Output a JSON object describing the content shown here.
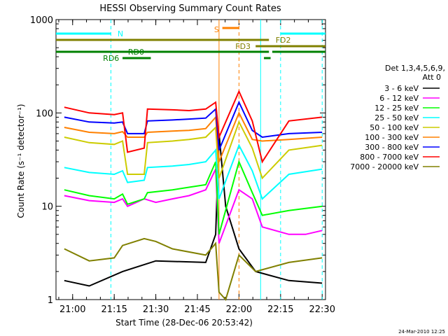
{
  "chart_data": {
    "type": "line",
    "title": "HESSI Observing Summary Count Rates",
    "xlabel": "Start Time (28-Dec-06 20:53:42)",
    "ylabel": "Count Rate (s⁻¹ detector⁻¹)",
    "x_range_minutes": [
      20.9,
      22.52
    ],
    "x_ticks": [
      "21:00",
      "21:15",
      "21:30",
      "21:45",
      "22:00",
      "22:15",
      "22:30"
    ],
    "y_scale": "log",
    "ylim": [
      1,
      1000
    ],
    "y_ticks": [
      "1",
      "10",
      "100",
      "1000"
    ],
    "legend_position": "right",
    "legend_header": [
      "Det 1,3,4,5,6,9,",
      "Att 0"
    ],
    "footer_date": "24-Mar-2010 12:25",
    "series": [
      {
        "name": "3 - 6 keV",
        "color": "#000000",
        "points": [
          [
            20.95,
            1.6
          ],
          [
            21.1,
            1.4
          ],
          [
            21.3,
            2.0
          ],
          [
            21.5,
            2.6
          ],
          [
            21.8,
            2.5
          ],
          [
            21.86,
            5.0
          ],
          [
            21.88,
            60
          ],
          [
            21.92,
            10
          ],
          [
            22.0,
            3.5
          ],
          [
            22.1,
            2.0
          ],
          [
            22.3,
            1.6
          ],
          [
            22.5,
            1.5
          ]
        ]
      },
      {
        "name": "6 - 12 keV",
        "color": "#ff00ff",
        "points": [
          [
            20.95,
            13
          ],
          [
            21.1,
            11.5
          ],
          [
            21.25,
            11
          ],
          [
            21.3,
            12
          ],
          [
            21.33,
            10
          ],
          [
            21.43,
            12
          ],
          [
            21.5,
            11
          ],
          [
            21.6,
            12
          ],
          [
            21.7,
            13
          ],
          [
            21.8,
            15
          ],
          [
            21.86,
            25
          ],
          [
            21.88,
            4
          ],
          [
            22.0,
            15
          ],
          [
            22.08,
            12
          ],
          [
            22.14,
            6
          ],
          [
            22.3,
            5
          ],
          [
            22.4,
            5
          ],
          [
            22.5,
            5.5
          ]
        ]
      },
      {
        "name": "12 - 25 keV",
        "color": "#00ff00",
        "points": [
          [
            20.95,
            15
          ],
          [
            21.1,
            13
          ],
          [
            21.25,
            12
          ],
          [
            21.3,
            13.5
          ],
          [
            21.33,
            10.5
          ],
          [
            21.43,
            12
          ],
          [
            21.45,
            14
          ],
          [
            21.6,
            15
          ],
          [
            21.7,
            16
          ],
          [
            21.8,
            17
          ],
          [
            21.86,
            30
          ],
          [
            21.88,
            5
          ],
          [
            22.0,
            30
          ],
          [
            22.08,
            14
          ],
          [
            22.14,
            8
          ],
          [
            22.3,
            9
          ],
          [
            22.5,
            10
          ]
        ]
      },
      {
        "name": "25 - 50 keV",
        "color": "#00ffff",
        "points": [
          [
            20.95,
            26
          ],
          [
            21.1,
            23
          ],
          [
            21.25,
            22
          ],
          [
            21.3,
            24
          ],
          [
            21.33,
            18
          ],
          [
            21.43,
            19
          ],
          [
            21.45,
            26
          ],
          [
            21.6,
            27
          ],
          [
            21.7,
            28
          ],
          [
            21.8,
            30
          ],
          [
            21.86,
            40
          ],
          [
            21.88,
            12
          ],
          [
            22.0,
            45
          ],
          [
            22.08,
            24
          ],
          [
            22.14,
            12
          ],
          [
            22.3,
            22
          ],
          [
            22.5,
            25
          ]
        ]
      },
      {
        "name": "50 - 100 keV",
        "color": "#cccc00",
        "points": [
          [
            20.95,
            55
          ],
          [
            21.1,
            48
          ],
          [
            21.25,
            46
          ],
          [
            21.3,
            50
          ],
          [
            21.33,
            22
          ],
          [
            21.43,
            22
          ],
          [
            21.45,
            48
          ],
          [
            21.6,
            50
          ],
          [
            21.7,
            52
          ],
          [
            21.8,
            55
          ],
          [
            21.86,
            70
          ],
          [
            21.88,
            20
          ],
          [
            22.0,
            80
          ],
          [
            22.08,
            42
          ],
          [
            22.14,
            20
          ],
          [
            22.3,
            40
          ],
          [
            22.5,
            45
          ]
        ]
      },
      {
        "name": "100 - 300 keV",
        "color": "#ff8000",
        "points": [
          [
            20.95,
            70
          ],
          [
            21.1,
            62
          ],
          [
            21.25,
            60
          ],
          [
            21.3,
            63
          ],
          [
            21.33,
            55
          ],
          [
            21.43,
            55
          ],
          [
            21.45,
            62
          ],
          [
            21.6,
            64
          ],
          [
            21.7,
            65
          ],
          [
            21.8,
            68
          ],
          [
            21.86,
            90
          ],
          [
            21.88,
            30
          ],
          [
            22.0,
            100
          ],
          [
            22.08,
            52
          ],
          [
            22.14,
            50
          ],
          [
            22.3,
            52
          ],
          [
            22.5,
            55
          ]
        ]
      },
      {
        "name": "300 - 800 keV",
        "color": "#0000ff",
        "points": [
          [
            20.95,
            90
          ],
          [
            21.1,
            80
          ],
          [
            21.25,
            78
          ],
          [
            21.3,
            80
          ],
          [
            21.33,
            60
          ],
          [
            21.43,
            60
          ],
          [
            21.45,
            82
          ],
          [
            21.6,
            84
          ],
          [
            21.7,
            86
          ],
          [
            21.8,
            88
          ],
          [
            21.86,
            110
          ],
          [
            21.88,
            40
          ],
          [
            22.0,
            130
          ],
          [
            22.08,
            65
          ],
          [
            22.14,
            55
          ],
          [
            22.3,
            60
          ],
          [
            22.5,
            62
          ]
        ]
      },
      {
        "name": "800 - 7000 keV",
        "color": "#ff0000",
        "points": [
          [
            20.95,
            115
          ],
          [
            21.1,
            100
          ],
          [
            21.25,
            96
          ],
          [
            21.3,
            100
          ],
          [
            21.33,
            38
          ],
          [
            21.43,
            42
          ],
          [
            21.45,
            110
          ],
          [
            21.6,
            108
          ],
          [
            21.7,
            106
          ],
          [
            21.8,
            110
          ],
          [
            21.86,
            130
          ],
          [
            21.88,
            55
          ],
          [
            22.0,
            170
          ],
          [
            22.08,
            82
          ],
          [
            22.14,
            30
          ],
          [
            22.3,
            82
          ],
          [
            22.5,
            90
          ]
        ]
      },
      {
        "name": "7000 - 20000 keV",
        "color": "#808000",
        "points": [
          [
            20.95,
            3.5
          ],
          [
            21.1,
            2.6
          ],
          [
            21.25,
            2.8
          ],
          [
            21.3,
            3.8
          ],
          [
            21.43,
            4.5
          ],
          [
            21.5,
            4.2
          ],
          [
            21.6,
            3.5
          ],
          [
            21.8,
            3.0
          ],
          [
            21.86,
            4.0
          ],
          [
            21.88,
            1.2
          ],
          [
            21.92,
            1.0
          ],
          [
            22.0,
            3.0
          ],
          [
            22.1,
            2.0
          ],
          [
            22.3,
            2.5
          ],
          [
            22.5,
            2.8
          ]
        ]
      }
    ],
    "state_bars": [
      {
        "label": "N",
        "color": "#00ffff",
        "segments": [
          [
            20.9,
            21.23
          ],
          [
            22.25,
            22.52
          ]
        ]
      },
      {
        "label": "S",
        "color": "#ff8000",
        "segments": [
          [
            21.9,
            22.0
          ]
        ]
      },
      {
        "label": "FD2",
        "color": "#808000",
        "segments": [
          [
            20.9,
            22.18
          ]
        ]
      },
      {
        "label": "FD3",
        "color": "#808000",
        "segments": [
          [
            22.1,
            22.52
          ]
        ]
      },
      {
        "label": "RD0",
        "color": "#008000",
        "segments": [
          [
            20.9,
            22.18
          ],
          [
            22.2,
            22.52
          ]
        ]
      },
      {
        "label": "RD6",
        "color": "#008000",
        "segments": [
          [
            21.3,
            21.47
          ],
          [
            22.15,
            22.19
          ]
        ]
      }
    ],
    "vertical_markers": [
      {
        "x": 21.23,
        "color": "#00ffff",
        "style": "dashed"
      },
      {
        "x": 21.88,
        "color": "#ff8000",
        "style": "solid"
      },
      {
        "x": 22.0,
        "color": "#ff8000",
        "style": "dashed"
      },
      {
        "x": 22.13,
        "color": "#00ffff",
        "style": "solid"
      },
      {
        "x": 22.25,
        "color": "#00ffff",
        "style": "dashed"
      },
      {
        "x": 22.5,
        "color": "#00ffff",
        "style": "dashed"
      }
    ]
  }
}
